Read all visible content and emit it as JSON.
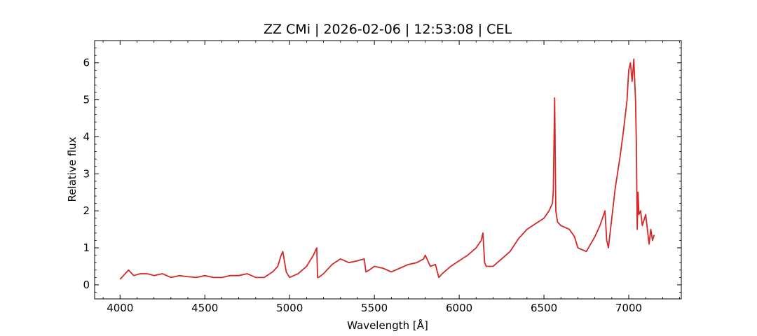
{
  "chart_data": {
    "type": "line",
    "title": "ZZ CMi | 2026-02-06 | 12:53:08 | CEL",
    "xlabel": "Wavelength [Å]",
    "ylabel": "Relative flux",
    "xlim": [
      3850,
      7310
    ],
    "ylim": [
      -0.38,
      6.6
    ],
    "x_ticks": [
      4000,
      4500,
      5000,
      5500,
      6000,
      6500,
      7000
    ],
    "y_ticks": [
      0,
      1,
      2,
      3,
      4,
      5,
      6
    ],
    "grid": false,
    "legend": "none",
    "series": [
      {
        "color": "#d62728",
        "x": [
          4000,
          4030,
          4050,
          4080,
          4120,
          4160,
          4200,
          4250,
          4300,
          4350,
          4400,
          4450,
          4500,
          4550,
          4600,
          4650,
          4700,
          4750,
          4800,
          4850,
          4900,
          4930,
          4950,
          4960,
          4980,
          5000,
          5050,
          5100,
          5140,
          5160,
          5165,
          5170,
          5200,
          5250,
          5300,
          5350,
          5400,
          5440,
          5450,
          5470,
          5500,
          5550,
          5600,
          5650,
          5700,
          5750,
          5790,
          5800,
          5830,
          5860,
          5880,
          5900,
          5950,
          6000,
          6050,
          6100,
          6130,
          6140,
          6150,
          6160,
          6200,
          6250,
          6300,
          6350,
          6400,
          6450,
          6500,
          6530,
          6550,
          6555,
          6563,
          6570,
          6580,
          6600,
          6650,
          6680,
          6700,
          6750,
          6800,
          6830,
          6860,
          6870,
          6880,
          6900,
          6920,
          6950,
          6970,
          6990,
          7000,
          7010,
          7020,
          7030,
          7040,
          7045,
          7050,
          7055,
          7060,
          7070,
          7080,
          7100,
          7120,
          7130,
          7140,
          7150
        ],
        "y": [
          0.15,
          0.3,
          0.4,
          0.25,
          0.3,
          0.3,
          0.25,
          0.3,
          0.2,
          0.25,
          0.22,
          0.2,
          0.25,
          0.2,
          0.2,
          0.25,
          0.25,
          0.3,
          0.2,
          0.2,
          0.35,
          0.5,
          0.8,
          0.9,
          0.35,
          0.2,
          0.3,
          0.5,
          0.8,
          1.0,
          0.2,
          0.2,
          0.3,
          0.55,
          0.7,
          0.6,
          0.65,
          0.7,
          0.35,
          0.4,
          0.5,
          0.45,
          0.35,
          0.45,
          0.55,
          0.6,
          0.7,
          0.8,
          0.5,
          0.55,
          0.2,
          0.3,
          0.5,
          0.65,
          0.8,
          1.0,
          1.2,
          1.4,
          0.6,
          0.5,
          0.5,
          0.7,
          0.9,
          1.25,
          1.5,
          1.65,
          1.8,
          2.0,
          2.2,
          2.5,
          5.05,
          2.0,
          1.7,
          1.6,
          1.5,
          1.3,
          1.0,
          0.9,
          1.3,
          1.6,
          2.0,
          1.2,
          1.0,
          1.8,
          2.6,
          3.5,
          4.2,
          5.0,
          5.8,
          6.0,
          5.5,
          6.1,
          5.0,
          3.8,
          1.5,
          2.5,
          1.9,
          2.0,
          1.6,
          1.9,
          1.1,
          1.5,
          1.2,
          1.35
        ]
      }
    ]
  }
}
